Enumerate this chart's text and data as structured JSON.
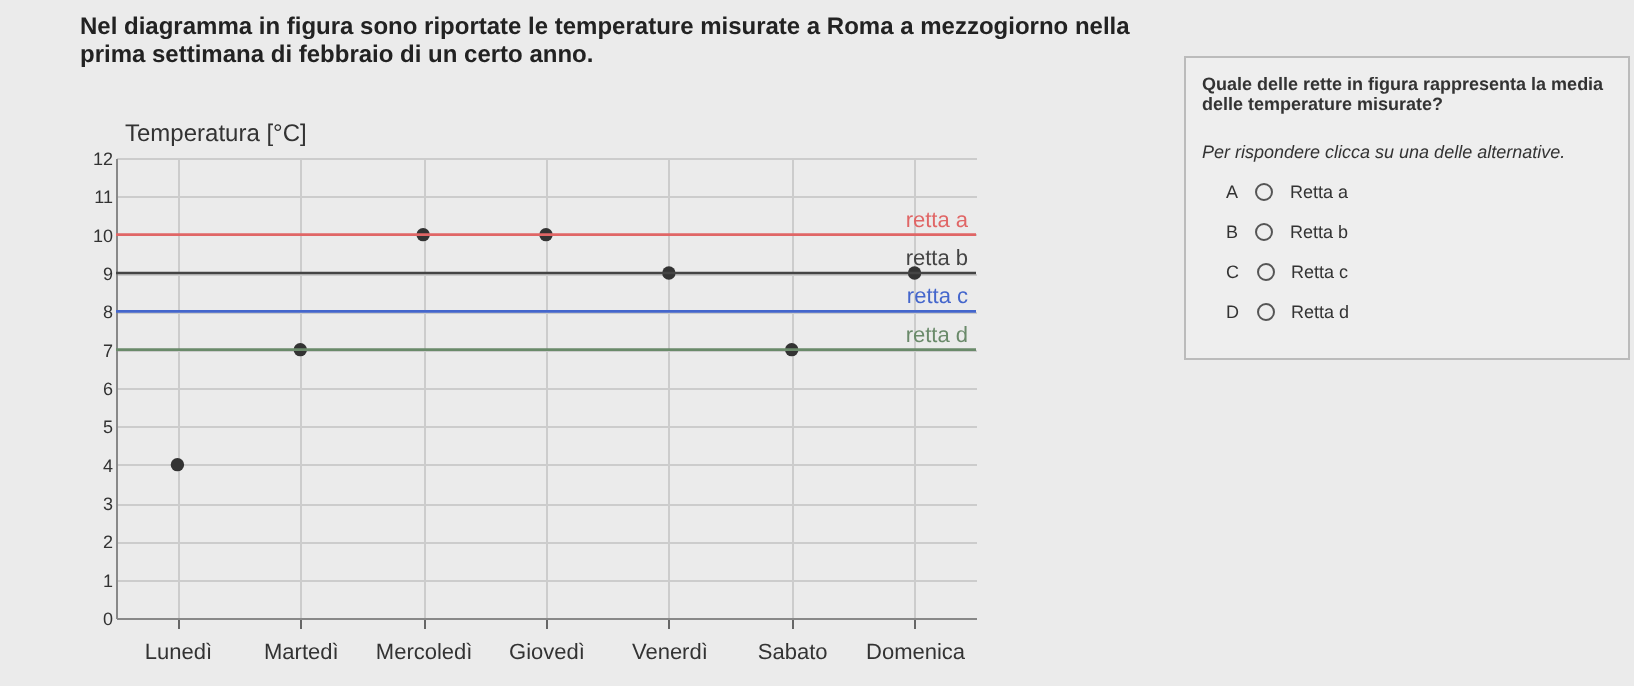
{
  "chart_data": [
    {
      "type": "scatter",
      "title": "Nel diagramma in figura sono riportate le temperature misurate a Roma a mezzogiorno nella prima settimana di febbraio di un certo anno.",
      "ylabel": "Temperatura [°C]",
      "categories": [
        "Lunedì",
        "Martedì",
        "Mercoledì",
        "Giovedì",
        "Venerdì",
        "Sabato",
        "Domenica"
      ],
      "values": [
        4,
        7,
        10,
        10,
        9,
        7,
        9
      ],
      "color": "#333333",
      "marker": "circle",
      "ylim": [
        0,
        12
      ],
      "yticks": [
        0,
        1,
        2,
        3,
        4,
        5,
        6,
        7,
        8,
        9,
        10,
        11,
        12
      ],
      "grid": true,
      "ref_lines": [
        {
          "axis": "y",
          "value": 10,
          "label": "retta a",
          "color": "#e06666"
        },
        {
          "axis": "y",
          "value": 9,
          "label": "retta b",
          "color": "#444444"
        },
        {
          "axis": "y",
          "value": 8,
          "label": "retta c",
          "color": "#4466cc"
        },
        {
          "axis": "y",
          "value": 7,
          "label": "retta d",
          "color": "#6a8a6a"
        }
      ]
    },
    {
      "type": "other",
      "title": "Quale delle rette in figura rappresenta la media delle temperature misurate?",
      "annotations": [
        "Per rispondere clicca su una delle alternative.",
        "A",
        "Retta a",
        "B",
        "Retta b",
        "C",
        "Retta c",
        "D",
        "Retta d"
      ]
    }
  ]
}
